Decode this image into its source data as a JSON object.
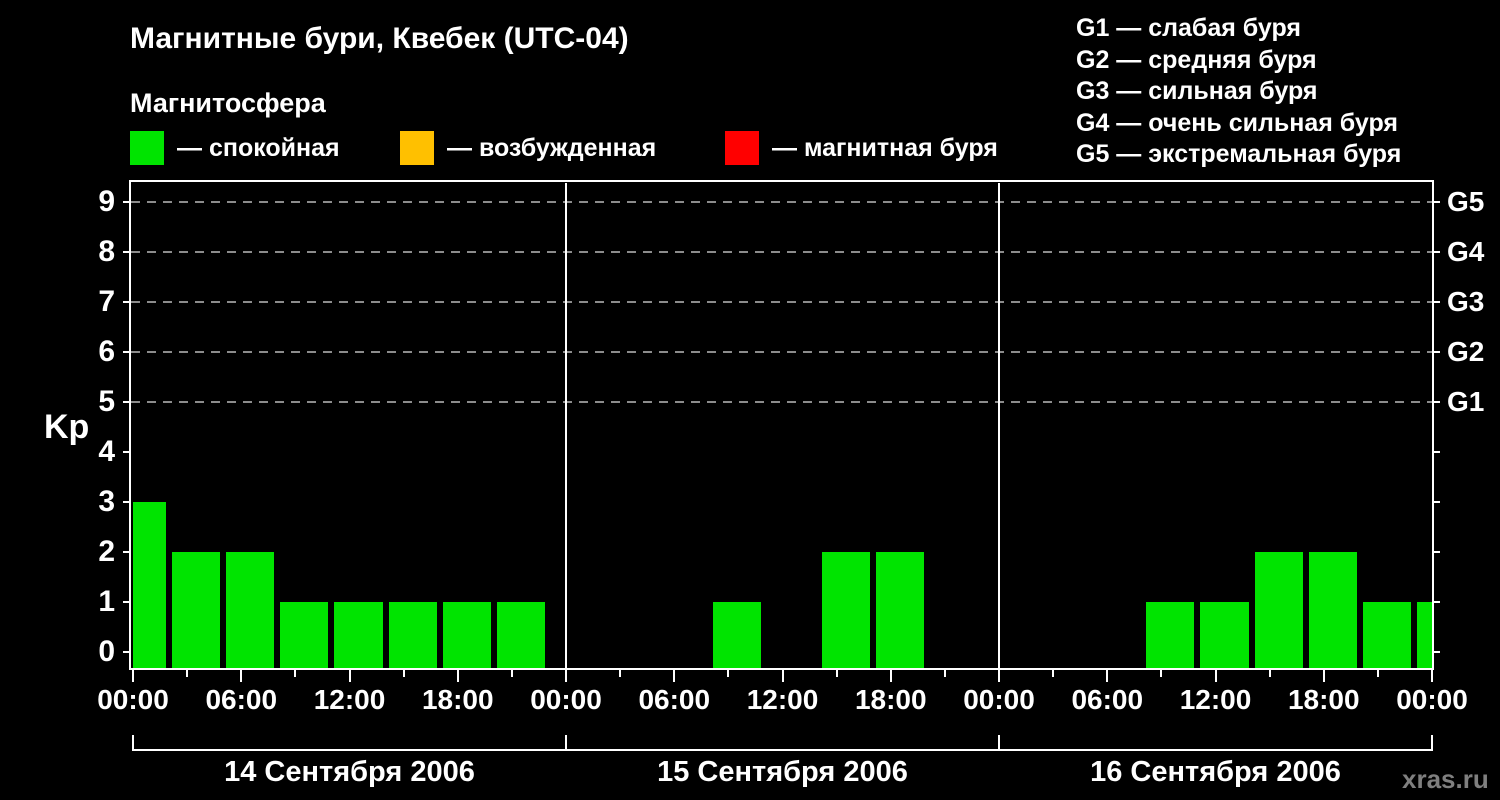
{
  "title": "Магнитные бури, Квебек (UTC-04)",
  "subtitle": "Магнитосфера",
  "legend": {
    "items": [
      {
        "id": "quiet",
        "label": "— спокойная",
        "color": "#00E400"
      },
      {
        "id": "excited",
        "label": "— возбужденная",
        "color": "#FFC000"
      },
      {
        "id": "storm",
        "label": "— магнитная буря",
        "color": "#FF0000"
      }
    ]
  },
  "storm_scale": [
    "G1 — слабая буря",
    "G2 — средняя буря",
    "G3 — сильная буря",
    "G4 — очень сильная буря",
    "G5 — экстремальная буря"
  ],
  "watermark": "xras.ru",
  "chart_data": {
    "type": "bar",
    "title": "Магнитные бури, Квебек (UTC-04)",
    "ylabel": "Kp",
    "ylim": [
      0,
      9
    ],
    "y_ticks": [
      0,
      1,
      2,
      3,
      4,
      5,
      6,
      7,
      8,
      9
    ],
    "grid_levels": [
      5,
      6,
      7,
      8,
      9
    ],
    "grid_on": true,
    "right_axis_labels": {
      "9": "G5",
      "8": "G4",
      "7": "G3",
      "6": "G2",
      "5": "G1"
    },
    "x_hour_labels": [
      "00:00",
      "06:00",
      "12:00",
      "18:00",
      "00:00"
    ],
    "hours_per_bar": 3,
    "bar_color": "#00E400",
    "grid_color": "#8C8C8C",
    "days": [
      {
        "date": "14 Сентября 2006",
        "kp": [
          3,
          2,
          2,
          1,
          1,
          1,
          1,
          1
        ]
      },
      {
        "date": "15 Сентября 2006",
        "kp": [
          0,
          0,
          0,
          1,
          0,
          2,
          2,
          0
        ]
      },
      {
        "date": "16 Сентября 2006",
        "kp": [
          0,
          0,
          0,
          1,
          1,
          2,
          2,
          1
        ],
        "next_day_first_bar": 1
      }
    ]
  }
}
